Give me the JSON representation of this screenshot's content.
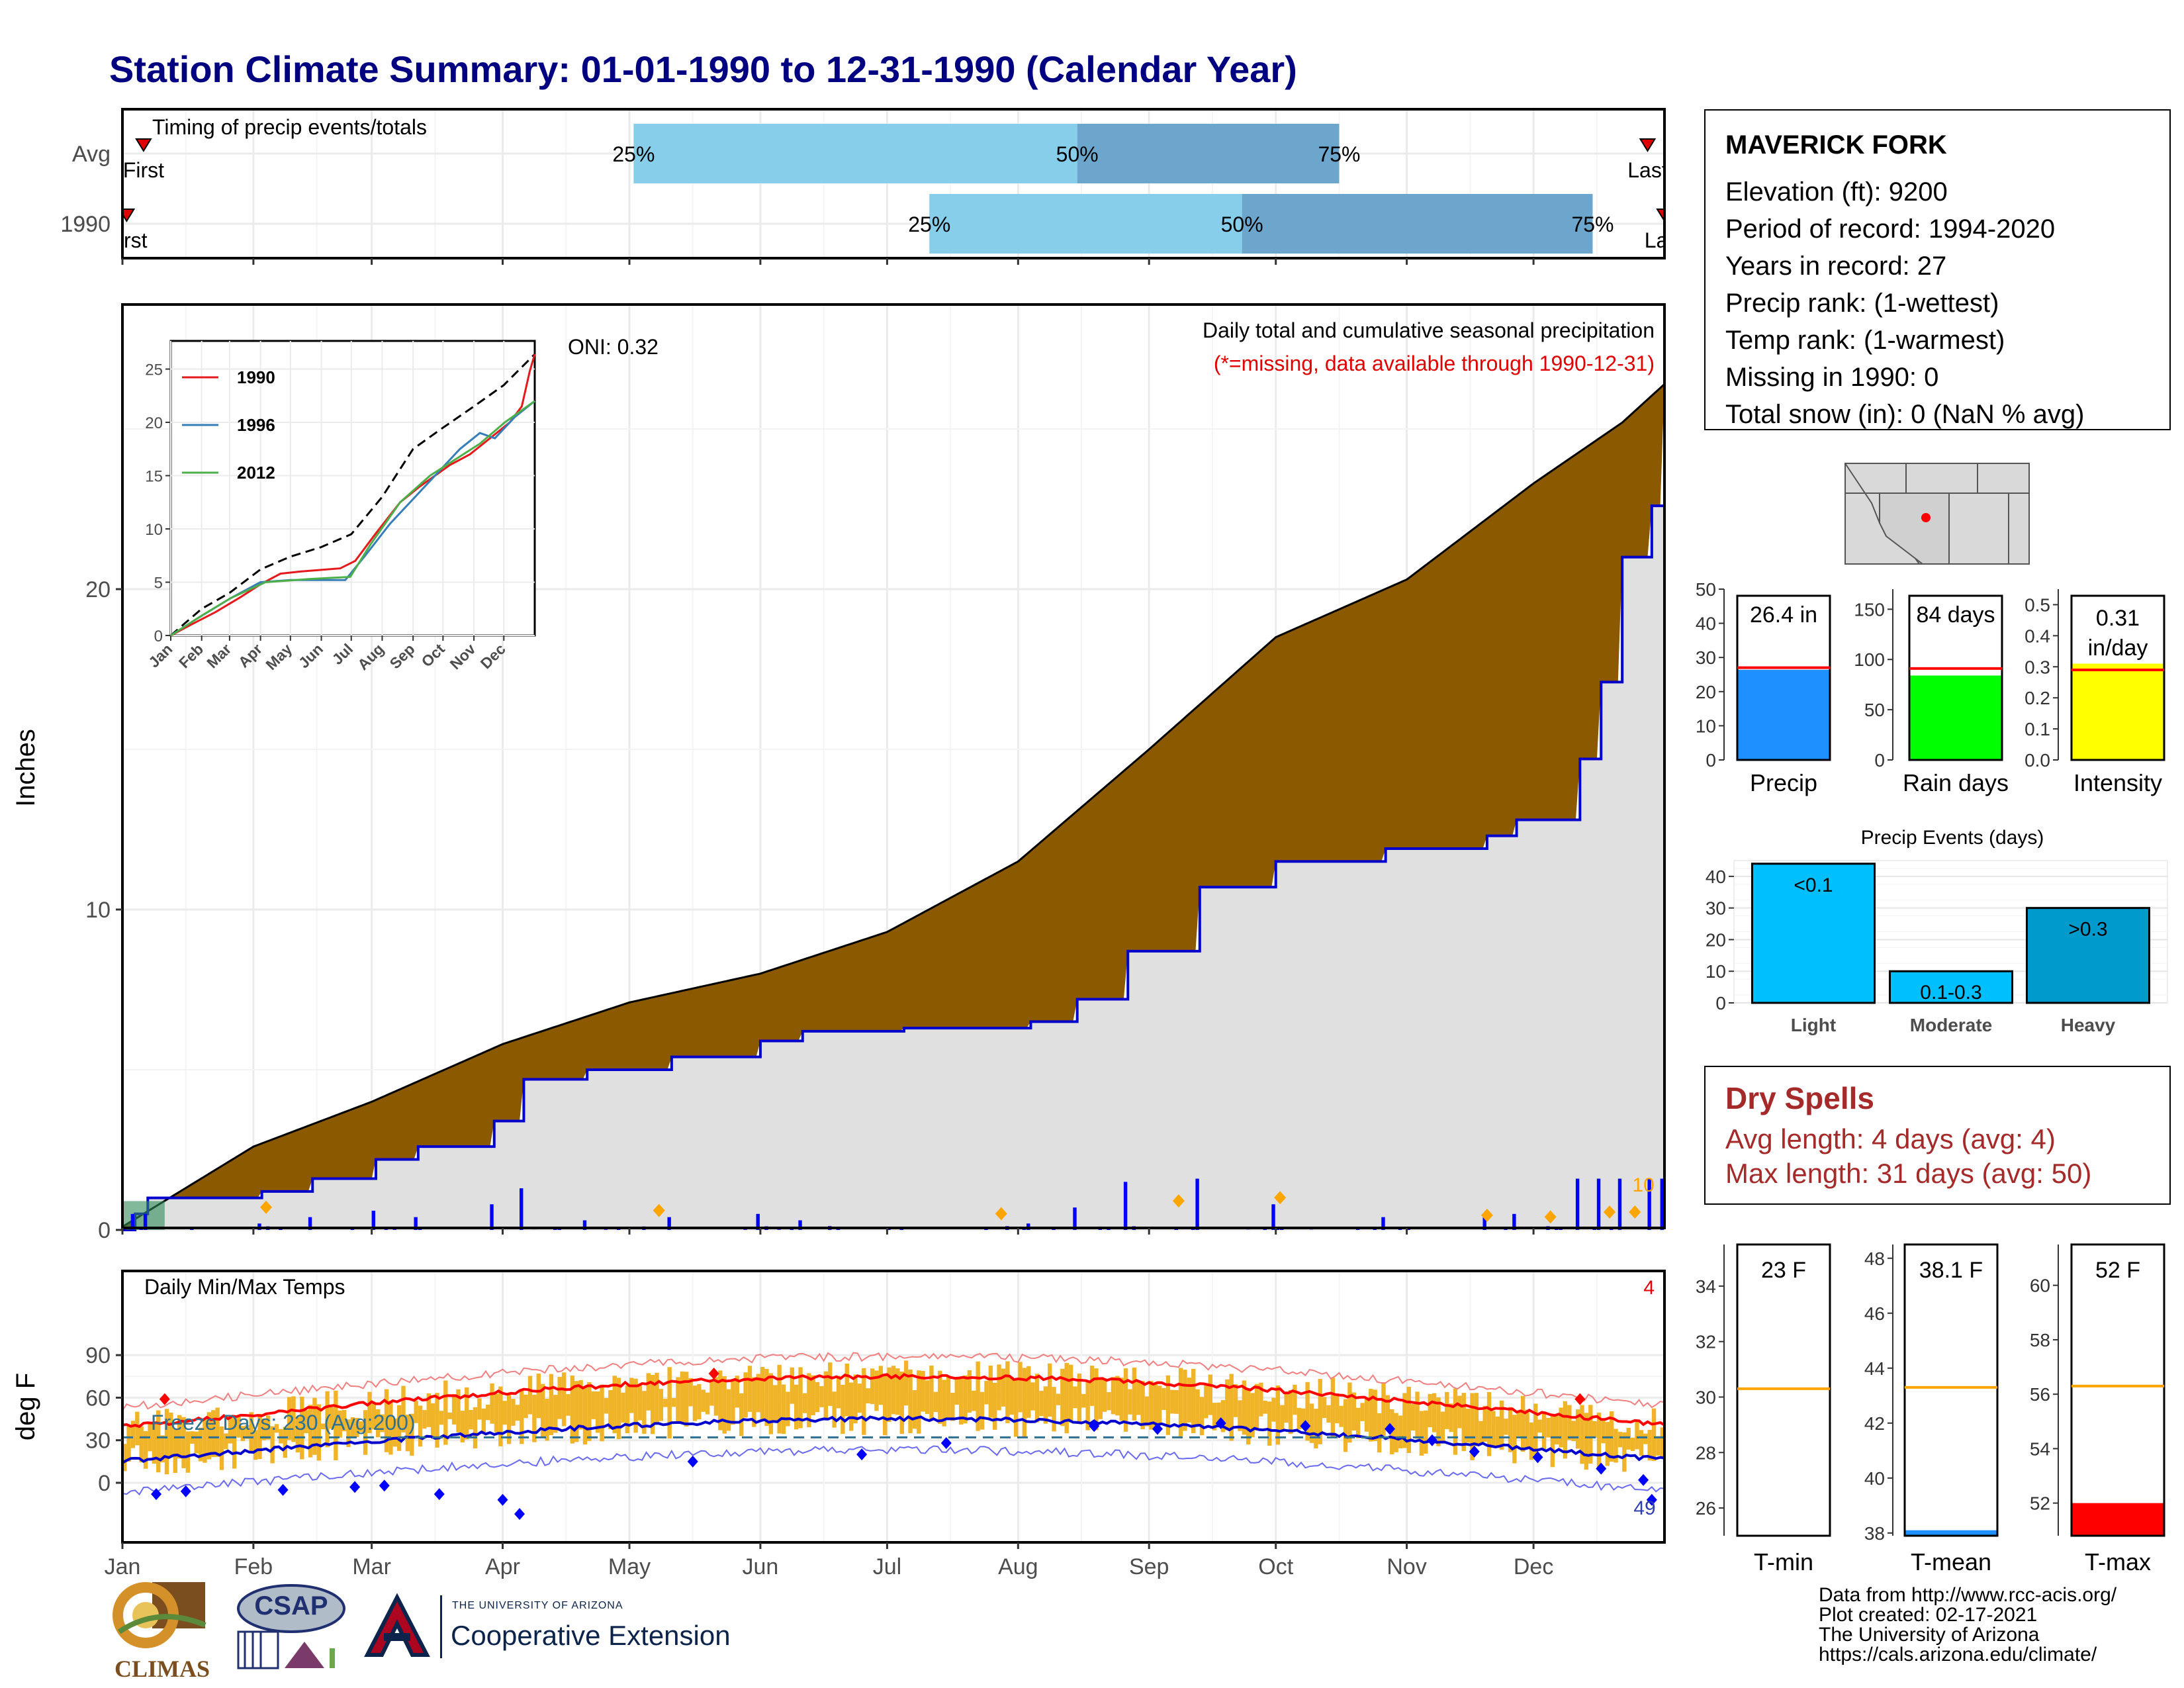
{
  "title": "Station Climate Summary: 01-01-1990 to 12-31-1990 (Calendar Year)",
  "months": [
    "Jan",
    "Feb",
    "Mar",
    "Apr",
    "May",
    "Jun",
    "Jul",
    "Aug",
    "Sep",
    "Oct",
    "Nov",
    "Dec"
  ],
  "station": {
    "name": "MAVERICK FORK",
    "lines": [
      "Elevation (ft): 9200",
      "Period of record: 1994-2020",
      "Years in record: 27",
      "Precip rank:  (1-wettest)",
      "Temp rank:  (1-warmest)",
      "Missing in 1990: 0",
      "Total snow (in): 0 (NaN % avg)"
    ]
  },
  "timing": {
    "title": "Timing of precip events/totals",
    "rows": [
      {
        "label": "Avg",
        "first_label": "First",
        "last_label": "Last",
        "p25_label": "25%",
        "p50_label": "50%",
        "p75_label": "75%",
        "first_day": 5,
        "p25_day": 121,
        "p50_day": 226,
        "p75_day": 288,
        "last_day": 361
      },
      {
        "label": "1990",
        "first_label": "First",
        "last_label": "Last",
        "p25_label": "25%",
        "p50_label": "50%",
        "p75_label": "75%",
        "first_day": 1,
        "p25_day": 191,
        "p50_day": 265,
        "p75_day": 348,
        "last_day": 365
      }
    ]
  },
  "precip_panel": {
    "ylabel": "Inches",
    "annotation": "Daily total and cumulative seasonal precipitation",
    "missing_note": "(*=missing, data available through 1990-12-31)",
    "oni": "ONI: 0.32",
    "yticks": [
      "0",
      "10",
      "20"
    ],
    "bar_label": "10",
    "colors": {
      "avg_fill": "#8B5A00",
      "obs_line": "#0000CC",
      "bars": "#0000FF",
      "base": "#E0E0E0"
    }
  },
  "inset": {
    "legend": [
      "1990",
      "1996",
      "2012"
    ],
    "yticks": [
      "0",
      "5",
      "10",
      "15",
      "20",
      "25"
    ],
    "colors": {
      "1990": "#E41A1C",
      "1996": "#377EB8",
      "2012": "#4DAF4A"
    }
  },
  "temp_panel": {
    "ylabel": "deg F",
    "title": "Daily Min/Max Temps",
    "freeze": "Freeze Days: 230 (Avg:200)",
    "rec_high_count": "4",
    "rec_low_count": "49",
    "yticks": [
      "0",
      "30",
      "60",
      "90"
    ]
  },
  "bars3": [
    {
      "name": "Precip",
      "value_label": "26.4 in",
      "value": 26.4,
      "avg": 27,
      "ymax": 50,
      "ticks": [
        "0",
        "10",
        "20",
        "30",
        "40",
        "50"
      ],
      "color": "#1E90FF"
    },
    {
      "name": "Rain days",
      "value_label": "84 days",
      "value": 84,
      "avg": 91,
      "ymax": 170,
      "ticks": [
        "0",
        "50",
        "100",
        "150"
      ],
      "color": "#00FF00"
    },
    {
      "name": "Intensity",
      "value_label": "0.31 in/day",
      "value_line1": "0.31",
      "value_line2": "in/day",
      "value": 0.31,
      "avg": 0.29,
      "ymax": 0.55,
      "ticks": [
        "0.0",
        "0.1",
        "0.2",
        "0.3",
        "0.4",
        "0.5"
      ],
      "color": "#FFFF00"
    }
  ],
  "events": {
    "title": "Precip Events (days)",
    "categories": [
      "Light",
      "Moderate",
      "Heavy"
    ],
    "labels": [
      "<0.1",
      "0.1-0.3",
      ">0.3"
    ],
    "values": [
      44,
      10,
      30
    ],
    "ticks": [
      "0",
      "10",
      "20",
      "30",
      "40"
    ],
    "colors": [
      "#00BFFF",
      "#00BFFF",
      "#009ACD"
    ]
  },
  "dry_spells": {
    "title": "Dry Spells",
    "avg": "Avg length: 4 days (avg: 4)",
    "max": "Max length: 31 days (avg: 50)"
  },
  "temp_bars": [
    {
      "name": "T-min",
      "value_label": "23 F",
      "value": 23,
      "avg": 30.3,
      "ymin": 25,
      "ymax": 35.5,
      "ticks": [
        "26",
        "28",
        "30",
        "32",
        "34"
      ],
      "color": "#1E90FF"
    },
    {
      "name": "T-mean",
      "value_label": "38.1 F",
      "value": 38.1,
      "avg": 43.3,
      "ymin": 37.9,
      "ymax": 48.5,
      "ticks": [
        "38",
        "40",
        "42",
        "44",
        "46",
        "48"
      ],
      "color": "#1E90FF"
    },
    {
      "name": "T-max",
      "value_label": "52 F",
      "value": 52,
      "avg": 56.3,
      "ymin": 50.8,
      "ymax": 61.5,
      "ticks": [
        "52",
        "54",
        "56",
        "58",
        "60"
      ],
      "color": "#FF0000"
    }
  ],
  "logos": {
    "climas": "CLIMAS",
    "csap": "CSAP",
    "ua_small": "THE UNIVERSITY OF ARIZONA",
    "ua_big": "Cooperative Extension"
  },
  "footer": [
    "Data from http://www.rcc-acis.org/",
    "Plot created: 02-17-2021",
    "The University of Arizona",
    "https://cals.arizona.edu/climate/"
  ]
}
